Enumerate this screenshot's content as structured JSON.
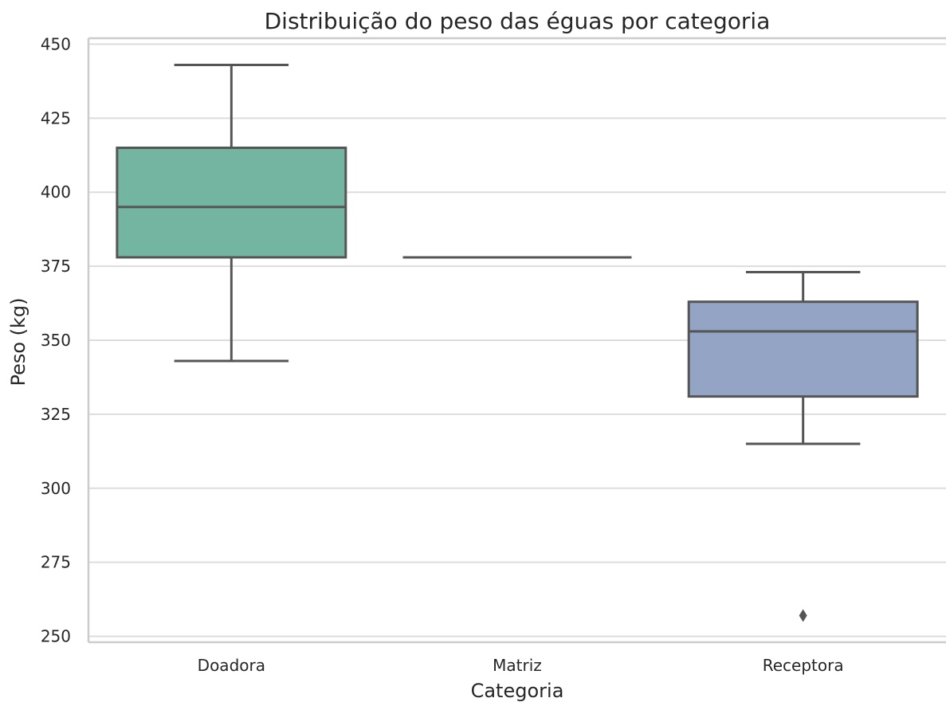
{
  "chart_data": {
    "type": "box",
    "title": "Distribuição do peso das éguas por categoria",
    "xlabel": "Categoria",
    "ylabel": "Peso (kg)",
    "ylim": [
      248,
      452
    ],
    "yticks": [
      250,
      275,
      300,
      325,
      350,
      375,
      400,
      425,
      450
    ],
    "grid": "horizontal",
    "categories": [
      "Doadora",
      "Matriz",
      "Receptora"
    ],
    "boxes": [
      {
        "category": "Doadora",
        "whisker_low": 343,
        "q1": 378,
        "median": 395,
        "q3": 415,
        "whisker_high": 443,
        "outliers": [],
        "color": "#73b5a0"
      },
      {
        "category": "Matriz",
        "whisker_low": 378,
        "q1": 378,
        "median": 378,
        "q3": 378,
        "whisker_high": 378,
        "outliers": [],
        "color": "#f2a17f"
      },
      {
        "category": "Receptora",
        "whisker_low": 315,
        "q1": 331,
        "median": 353,
        "q3": 363,
        "whisker_high": 373,
        "outliers": [
          257
        ],
        "color": "#94a4c5"
      }
    ],
    "line_color": "#555555"
  }
}
